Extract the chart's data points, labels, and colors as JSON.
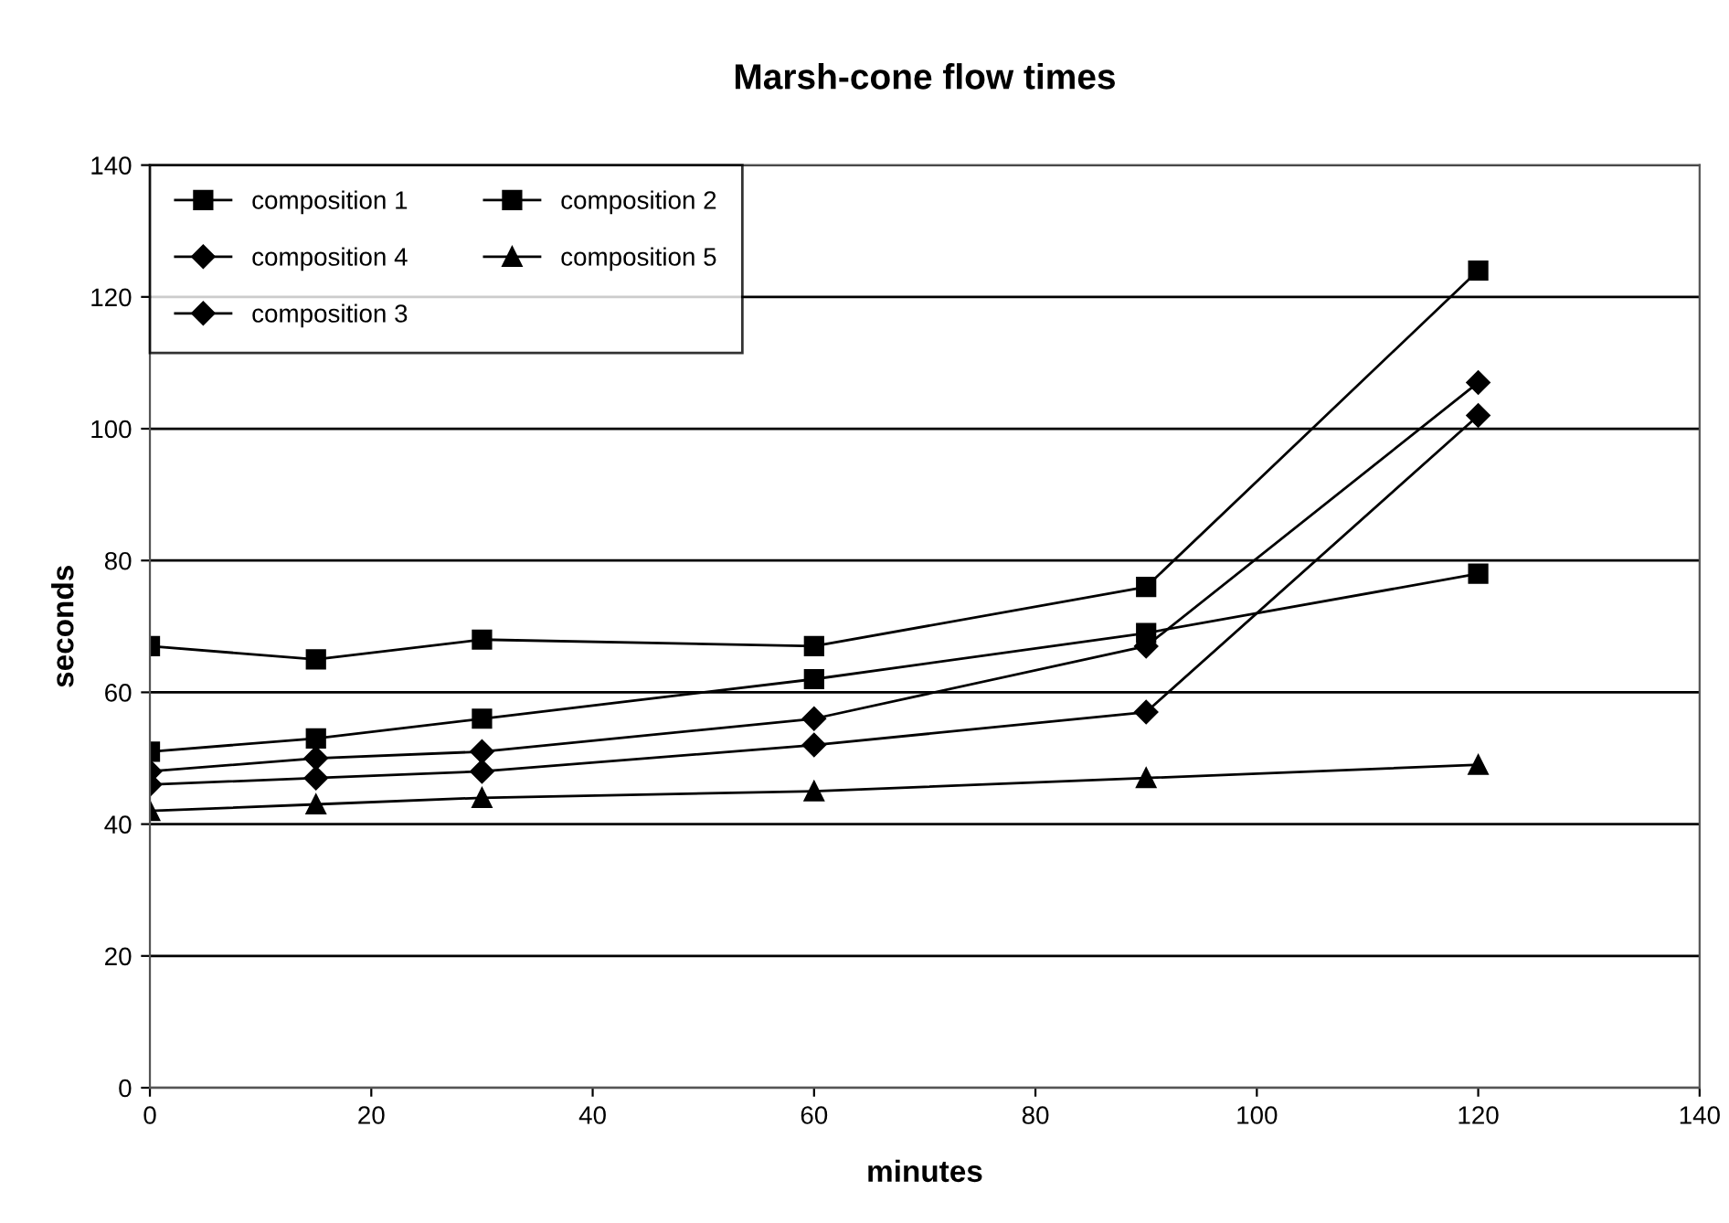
{
  "chart_data": {
    "type": "line",
    "title": "Marsh-cone flow times",
    "xlabel": "minutes",
    "ylabel": "seconds",
    "x": [
      0,
      15,
      30,
      60,
      90,
      120
    ],
    "series": [
      {
        "name": "composition 1",
        "color": "#000000",
        "marker": "square",
        "values": [
          51,
          53,
          56,
          62,
          69,
          78
        ]
      },
      {
        "name": "composition 2",
        "color": "#000000",
        "marker": "square",
        "values": [
          67,
          65,
          68,
          67,
          76,
          124
        ]
      },
      {
        "name": "composition 4",
        "color": "#000000",
        "marker": "diamond",
        "values": [
          46,
          47,
          48,
          52,
          57,
          102
        ]
      },
      {
        "name": "composition 5",
        "color": "#000000",
        "marker": "triangle",
        "values": [
          42,
          43,
          44,
          45,
          47,
          49
        ]
      },
      {
        "name": "composition 3",
        "color": "#000000",
        "marker": "diamond",
        "values": [
          48,
          50,
          51,
          56,
          67,
          107
        ]
      }
    ],
    "xlim": [
      0,
      140
    ],
    "xticks": [
      0,
      20,
      40,
      60,
      80,
      100,
      120,
      140
    ],
    "ylim": [
      0,
      140
    ],
    "yticks": [
      0,
      20,
      40,
      60,
      80,
      100,
      120,
      140
    ],
    "grid": "y",
    "legend": "top left",
    "line_style": "solid"
  }
}
